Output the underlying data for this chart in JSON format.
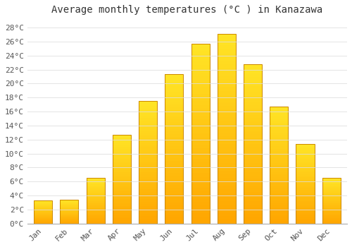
{
  "title": "Average monthly temperatures (°C ) in Kanazawa",
  "months": [
    "Jan",
    "Feb",
    "Mar",
    "Apr",
    "May",
    "Jun",
    "Jul",
    "Aug",
    "Sep",
    "Oct",
    "Nov",
    "Dec"
  ],
  "temperatures": [
    3.3,
    3.4,
    6.5,
    12.7,
    17.5,
    21.3,
    25.7,
    27.1,
    22.8,
    16.7,
    11.4,
    6.5
  ],
  "bar_color_top": "#FFD966",
  "bar_color_bottom": "#FFA500",
  "bar_edge_color": "#CC8800",
  "ylim": [
    0,
    29
  ],
  "yticks": [
    0,
    2,
    4,
    6,
    8,
    10,
    12,
    14,
    16,
    18,
    20,
    22,
    24,
    26,
    28
  ],
  "ytick_labels": [
    "0°C",
    "2°C",
    "4°C",
    "6°C",
    "8°C",
    "10°C",
    "12°C",
    "14°C",
    "16°C",
    "18°C",
    "20°C",
    "22°C",
    "24°C",
    "26°C",
    "28°C"
  ],
  "background_color": "#ffffff",
  "grid_color": "#dddddd",
  "title_fontsize": 10,
  "tick_fontsize": 8,
  "font_family": "monospace",
  "bar_width": 0.7
}
